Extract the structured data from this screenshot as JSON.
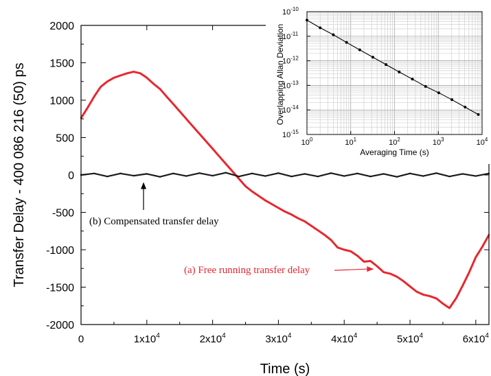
{
  "chart_data": [
    {
      "type": "line",
      "xlabel": "Time (s)",
      "ylabel": "Transfer Delay - 400 086 216 (50) ps",
      "xlim": [
        0,
        62000
      ],
      "ylim": [
        -2000,
        2000
      ],
      "x_ticks": [
        {
          "value": 0,
          "label": "0",
          "exp": ""
        },
        {
          "value": 10000,
          "label": "1x10",
          "exp": "4"
        },
        {
          "value": 20000,
          "label": "2x10",
          "exp": "4"
        },
        {
          "value": 30000,
          "label": "3x10",
          "exp": "4"
        },
        {
          "value": 40000,
          "label": "4x10",
          "exp": "4"
        },
        {
          "value": 50000,
          "label": "5x10",
          "exp": "4"
        },
        {
          "value": 60000,
          "label": "6x10",
          "exp": "4"
        }
      ],
      "y_ticks": [
        {
          "value": 2000,
          "label": "2000"
        },
        {
          "value": 1500,
          "label": "1500"
        },
        {
          "value": 1000,
          "label": "1000"
        },
        {
          "value": 500,
          "label": "500"
        },
        {
          "value": 0,
          "label": "0"
        },
        {
          "value": -500,
          "label": "-500"
        },
        {
          "value": -1000,
          "label": "-1000"
        },
        {
          "value": -1500,
          "label": "-1500"
        },
        {
          "value": -2000,
          "label": "-2000"
        }
      ],
      "series": [
        {
          "label": "(a) Free running transfer delay",
          "color": "#e8262d",
          "x": [
            0,
            1000,
            2000,
            3000,
            4000,
            5000,
            6000,
            7000,
            8000,
            9000,
            10000,
            11000,
            12000,
            13000,
            14000,
            15000,
            16000,
            17000,
            18000,
            19000,
            20000,
            21000,
            22000,
            23000,
            24000,
            25000,
            26000,
            27000,
            28000,
            29000,
            30000,
            31000,
            32000,
            33000,
            34000,
            35000,
            36000,
            37000,
            38000,
            39000,
            40000,
            41000,
            42000,
            43000,
            44000,
            45000,
            46000,
            47000,
            48000,
            49000,
            50000,
            51000,
            52000,
            53000,
            54000,
            55000,
            56000,
            57000,
            58000,
            59000,
            60000,
            61000,
            62000
          ],
          "y": [
            760,
            900,
            1050,
            1180,
            1250,
            1300,
            1330,
            1360,
            1380,
            1360,
            1300,
            1220,
            1150,
            1050,
            950,
            850,
            750,
            650,
            550,
            450,
            350,
            250,
            150,
            50,
            -50,
            -150,
            -220,
            -280,
            -340,
            -390,
            -440,
            -490,
            -530,
            -580,
            -620,
            -680,
            -740,
            -800,
            -870,
            -970,
            -1000,
            -1020,
            -1080,
            -1160,
            -1150,
            -1220,
            -1300,
            -1320,
            -1360,
            -1420,
            -1490,
            -1560,
            -1600,
            -1620,
            -1650,
            -1720,
            -1780,
            -1650,
            -1480,
            -1300,
            -1100,
            -960,
            -800
          ]
        },
        {
          "label": "(b) Compensated transfer delay",
          "color": "#1a1a1a",
          "x": [
            0,
            2000,
            4000,
            6000,
            8000,
            10000,
            12000,
            14000,
            16000,
            18000,
            20000,
            22000,
            24000,
            26000,
            28000,
            30000,
            32000,
            34000,
            36000,
            38000,
            40000,
            42000,
            44000,
            46000,
            48000,
            50000,
            52000,
            54000,
            56000,
            58000,
            60000,
            62000
          ],
          "y": [
            0,
            20,
            -20,
            20,
            -10,
            15,
            -25,
            20,
            -15,
            25,
            -10,
            30,
            -20,
            20,
            -15,
            25,
            -20,
            15,
            -20,
            25,
            -15,
            20,
            -20,
            15,
            -25,
            20,
            -15,
            25,
            -20,
            15,
            -15,
            20
          ]
        }
      ],
      "annotations": [
        {
          "text": "(a) Free running transfer delay",
          "points_to": [
            44500,
            -1230
          ]
        },
        {
          "text": "(b) Compensated transfer delay",
          "points_to": [
            9500,
            -60
          ]
        }
      ]
    },
    {
      "type": "scatter",
      "scale": "log-log",
      "xlabel": "Averaging Time (s)",
      "ylabel": "Overlapping Allan Deviation",
      "xlim": [
        1,
        10000
      ],
      "ylim": [
        1e-15,
        1e-10
      ],
      "x_tick_labels": [
        {
          "value": 1,
          "base": "10",
          "exp": "0"
        },
        {
          "value": 10,
          "base": "10",
          "exp": "1"
        },
        {
          "value": 100,
          "base": "10",
          "exp": "2"
        },
        {
          "value": 1000,
          "base": "10",
          "exp": "3"
        },
        {
          "value": 10000,
          "base": "10",
          "exp": "4"
        }
      ],
      "y_tick_labels": [
        {
          "value": 1e-10,
          "base": "10",
          "exp": "-10"
        },
        {
          "value": 1e-11,
          "base": "10",
          "exp": "-11"
        },
        {
          "value": 1e-12,
          "base": "10",
          "exp": "-12"
        },
        {
          "value": 1e-13,
          "base": "10",
          "exp": "-13"
        },
        {
          "value": 1e-14,
          "base": "10",
          "exp": "-14"
        },
        {
          "value": 1e-15,
          "base": "10",
          "exp": "-15"
        }
      ],
      "grid": true,
      "series": [
        {
          "color": "#000000",
          "x": [
            1,
            2,
            4,
            8,
            16,
            32,
            64,
            128,
            256,
            512,
            1024,
            2048,
            4096,
            8192
          ],
          "y": [
            4.5e-11,
            2.2e-11,
            1.15e-11,
            5.6e-12,
            2.8e-12,
            1.4e-12,
            7e-13,
            3.5e-13,
            1.8e-13,
            9e-14,
            5e-14,
            2.6e-14,
            1.3e-14,
            6.5e-15
          ]
        }
      ]
    }
  ]
}
